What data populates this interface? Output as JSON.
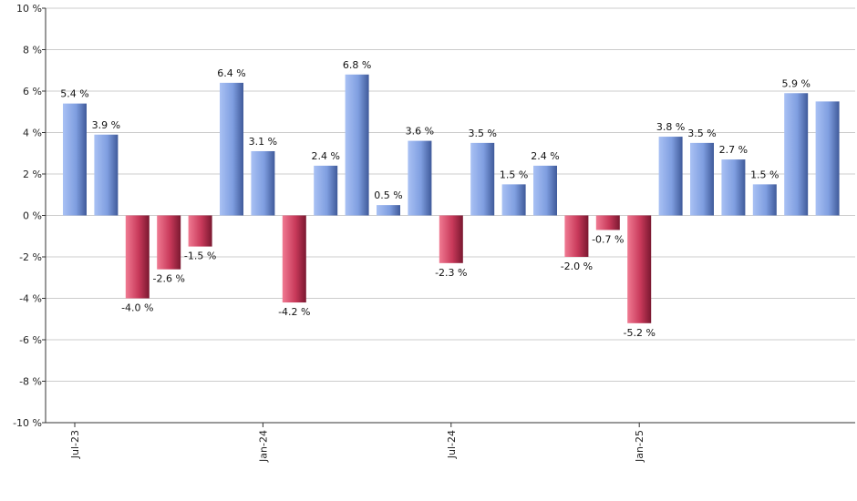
{
  "chart_data": {
    "type": "bar",
    "title": "",
    "xlabel": "",
    "ylabel": "",
    "ylim": [
      -10,
      10
    ],
    "y_ticks": [
      10,
      8,
      6,
      4,
      2,
      0,
      -2,
      -4,
      -6,
      -8,
      -10
    ],
    "y_tick_labels": [
      "10 %",
      "8 %",
      "6 %",
      "4 %",
      "2 %",
      "0 %",
      "-2 %",
      "-4 %",
      "-6 %",
      "-8 %",
      "-10 %"
    ],
    "grid": true,
    "values": [
      5.4,
      3.9,
      -4.0,
      -2.6,
      -1.5,
      6.4,
      3.1,
      -4.2,
      2.4,
      6.8,
      0.5,
      3.6,
      -2.3,
      3.5,
      1.5,
      2.4,
      -2.0,
      -0.7,
      -5.2,
      3.8,
      3.5,
      2.7,
      1.5,
      5.9,
      5.5
    ],
    "value_labels": [
      "5.4 %",
      "3.9 %",
      "-4.0 %",
      "-2.6 %",
      "-1.5 %",
      "6.4 %",
      "3.1 %",
      "-4.2 %",
      "2.4 %",
      "6.8 %",
      "0.5 %",
      "3.6 %",
      "-2.3 %",
      "3.5 %",
      "1.5 %",
      "2.4 %",
      "-2.0 %",
      "-0.7 %",
      "-5.2 %",
      "3.8 %",
      "3.5 %",
      "2.7 %",
      "1.5 %",
      "5.9 %",
      ""
    ],
    "x_tick_labels": [
      {
        "index": 0,
        "label": "Jul-23"
      },
      {
        "index": 6,
        "label": "Jan-24"
      },
      {
        "index": 12,
        "label": "Jul-24"
      },
      {
        "index": 18,
        "label": "Jan-25"
      }
    ],
    "colors": {
      "positive": "#7f9ee0",
      "negative": "#c8395a",
      "grid": "#cccccc",
      "axis": "#333333"
    }
  }
}
